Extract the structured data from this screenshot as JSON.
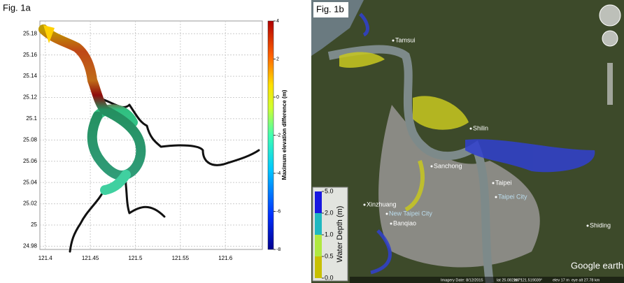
{
  "fig1a": {
    "label": "Fig. 1a",
    "xlim": [
      121.394,
      121.641
    ],
    "xticks": [
      121.4,
      121.45,
      121.5,
      121.55,
      121.6
    ],
    "ylim": [
      24.977,
      25.192
    ],
    "yticks": [
      24.98,
      25,
      25.02,
      25.04,
      25.06,
      25.08,
      25.1,
      25.12,
      25.14,
      25.16,
      25.18
    ],
    "colorbar": {
      "label": "Maximum elevation difference (m)",
      "lim": [
        -8,
        4
      ],
      "ticks": [
        -8,
        -6,
        -4,
        -2,
        0,
        2,
        4
      ]
    }
  },
  "fig1b": {
    "label": "Fig. 1b",
    "places": [
      "Tamsui",
      "Shilin",
      "Sanchong",
      "Taipei",
      "Taipei City",
      "Xinzhuang",
      "New Taipei City",
      "Banqiao",
      "Shiding"
    ],
    "legend": {
      "title": "Water Depth (m)",
      "ticks": [
        {
          "value": 0,
          "label": "0.0"
        },
        {
          "value": 0.5,
          "label": "0.5"
        },
        {
          "value": 1,
          "label": "1.0"
        },
        {
          "value": 2,
          "label": "2.0"
        },
        {
          "value": 5,
          "label": "5.0"
        }
      ]
    },
    "brand": "Google earth",
    "status": [
      "Imagery Date: 8/12/2015",
      "lat 25.082267°",
      "lon 121.519039°",
      "elev 17 m",
      "eye alt 27.78 km"
    ]
  }
}
